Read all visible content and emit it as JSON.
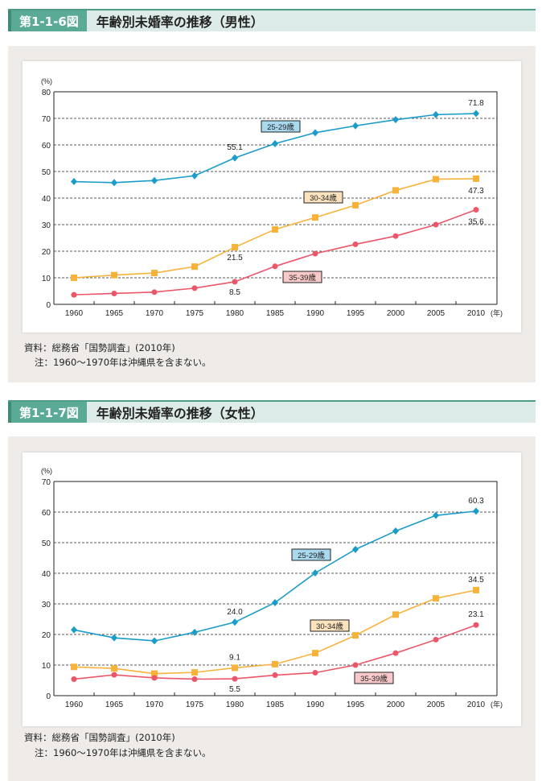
{
  "figures": [
    {
      "id": "1-1-6",
      "number": "第1-1-6図",
      "title": "年齢別未婚率の推移（男性）",
      "source": "資料：総務省「国勢調査」(2010年)",
      "note": "注：1960〜1970年は沖縄県を含まない。"
    },
    {
      "id": "1-1-7",
      "number": "第1-1-7図",
      "title": "年齢別未婚率の推移（女性）",
      "source": "資料：総務省「国勢調査」(2010年)",
      "note": "注：1960〜1970年は沖縄県を含まない。"
    }
  ],
  "chart_data": [
    {
      "type": "line",
      "title": "年齢別未婚率の推移（男性）",
      "ylabel": "(%)",
      "xlabel": "(年)",
      "ylim": [
        0,
        80
      ],
      "yticks": [
        0,
        10,
        20,
        30,
        40,
        50,
        60,
        70,
        80
      ],
      "grid": true,
      "categories": [
        "1960",
        "1965",
        "1970",
        "1975",
        "1980",
        "1985",
        "1990",
        "1995",
        "2000",
        "2005",
        "2010"
      ],
      "series": [
        {
          "name": "25-29歳",
          "color": "#1a9cc9",
          "marker": "diamond",
          "values": [
            46.2,
            45.8,
            46.6,
            48.4,
            55.1,
            60.5,
            64.6,
            67.2,
            69.5,
            71.4,
            71.8
          ],
          "labels": {
            "4": "55.1",
            "10": "71.8"
          }
        },
        {
          "name": "30-34歳",
          "color": "#f7b23b",
          "marker": "square",
          "values": [
            10.0,
            11.0,
            11.8,
            14.2,
            21.5,
            28.2,
            32.7,
            37.3,
            42.9,
            47.1,
            47.3
          ],
          "labels": {
            "4": "21.5",
            "10": "47.3"
          }
        },
        {
          "name": "35-39歳",
          "color": "#ec5668",
          "marker": "circle",
          "values": [
            3.6,
            4.1,
            4.6,
            6.1,
            8.5,
            14.3,
            19.1,
            22.6,
            25.7,
            30.0,
            35.6
          ],
          "labels": {
            "4": "8.5",
            "10": "35.6"
          }
        }
      ]
    },
    {
      "type": "line",
      "title": "年齢別未婚率の推移（女性）",
      "ylabel": "(%)",
      "xlabel": "(年)",
      "ylim": [
        0,
        70
      ],
      "yticks": [
        0,
        10,
        20,
        30,
        40,
        50,
        60,
        70
      ],
      "grid": true,
      "categories": [
        "1960",
        "1965",
        "1970",
        "1975",
        "1980",
        "1985",
        "1990",
        "1995",
        "2000",
        "2005",
        "2010"
      ],
      "series": [
        {
          "name": "25-29歳",
          "color": "#1a9cc9",
          "marker": "diamond",
          "values": [
            21.5,
            18.9,
            17.9,
            20.7,
            24.0,
            30.4,
            40.1,
            47.8,
            53.8,
            58.9,
            60.3
          ],
          "labels": {
            "4": "24.0",
            "10": "60.3"
          }
        },
        {
          "name": "30-34歳",
          "color": "#f7b23b",
          "marker": "square",
          "values": [
            9.4,
            8.9,
            7.2,
            7.6,
            9.1,
            10.3,
            13.9,
            19.7,
            26.5,
            31.8,
            34.5
          ],
          "labels": {
            "4": "9.1",
            "10": "34.5"
          }
        },
        {
          "name": "35-39歳",
          "color": "#ec5668",
          "marker": "circle",
          "values": [
            5.4,
            6.8,
            5.8,
            5.4,
            5.5,
            6.7,
            7.5,
            10.0,
            13.9,
            18.3,
            23.1
          ],
          "labels": {
            "4": "5.5",
            "10": "23.1"
          }
        }
      ]
    }
  ],
  "colors": {
    "header_bg": "#dcebe7",
    "header_accent": "#5aaa95",
    "panel_bg": "#efebe8",
    "legend_bg": {
      "25-29歳": "#a9d9ef",
      "30-34歳": "#fde3bd",
      "35-39歳": "#f9c9c9"
    }
  }
}
